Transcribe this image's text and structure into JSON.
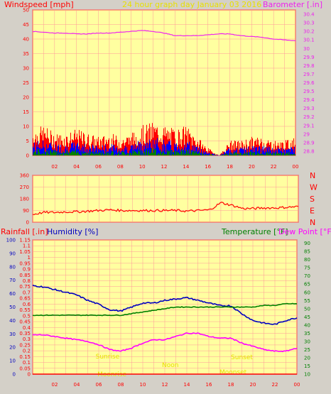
{
  "colors": {
    "background": "#d4d0c8",
    "plot_bg": "#ffffa0",
    "grid": "#ff9999",
    "axis_frame": "#ff0000",
    "windspeed": "#ff0000",
    "gust_blue": "#0000ff",
    "gust_green": "#008000",
    "barometer": "#ee22ee",
    "wind_dir": "#ff0000",
    "rainfall": "#ff0000",
    "humidity": "#0000c0",
    "temperature": "#008000",
    "dew_point": "#ff00ff",
    "faint_text": "#e8e000"
  },
  "chart_data": [
    {
      "type": "line",
      "title": "24 hour graph day   January 03 2016",
      "left_axis_label": "Windspeed [mph]",
      "right_axis_label": "Barometer [.in]",
      "x_ticks": [
        "02",
        "04",
        "06",
        "08",
        "10",
        "12",
        "14",
        "16",
        "18",
        "20",
        "22",
        "00"
      ],
      "y_left_ticks": [
        "0",
        "5",
        "10",
        "15",
        "20",
        "25",
        "30",
        "35",
        "40",
        "45",
        "50"
      ],
      "y_left_range": [
        0,
        50
      ],
      "y_right_ticks": [
        "28.8",
        "28.9",
        "29",
        "29.1",
        "29.2",
        "29.3",
        "29.4",
        "29.5",
        "29.6",
        "29.7",
        "29.8",
        "29.9",
        "30",
        "30.1",
        "30.2",
        "30.3",
        "30.4"
      ],
      "y_right_range": [
        28.75,
        30.45
      ],
      "grid": true,
      "series": [
        {
          "name": "Windspeed [mph]",
          "axis": "left",
          "x": [
            0,
            1,
            2,
            3,
            4,
            5,
            6,
            7,
            8,
            9,
            10,
            11,
            12,
            13,
            14,
            15,
            16,
            17,
            18,
            19,
            20,
            21,
            22,
            23,
            24
          ],
          "values": [
            7,
            8,
            6,
            6,
            7,
            6,
            5,
            6,
            5,
            6,
            8,
            9,
            8,
            7,
            8,
            5,
            2,
            0,
            4,
            4,
            5,
            5,
            4,
            4,
            5
          ]
        },
        {
          "name": "Barometer [.in]",
          "axis": "right",
          "x": [
            0,
            1,
            2,
            3,
            4,
            5,
            6,
            7,
            8,
            9,
            10,
            11,
            12,
            13,
            14,
            15,
            16,
            17,
            18,
            19,
            20,
            21,
            22,
            23,
            24
          ],
          "values": [
            30.2,
            30.19,
            30.18,
            30.18,
            30.17,
            30.17,
            30.18,
            30.18,
            30.19,
            30.2,
            30.21,
            30.2,
            30.18,
            30.15,
            30.15,
            30.15,
            30.16,
            30.17,
            30.17,
            30.15,
            30.14,
            30.13,
            30.11,
            30.1,
            30.09
          ]
        }
      ]
    },
    {
      "type": "line",
      "left_axis_ticks": [
        "360",
        "270",
        "180",
        "90",
        "0"
      ],
      "y_range": [
        0,
        360
      ],
      "direction_labels": [
        "N",
        "W",
        "S",
        "E",
        "N"
      ],
      "x_ticks": [
        "02",
        "04",
        "06",
        "08",
        "10",
        "12",
        "14",
        "16",
        "18",
        "20",
        "22",
        "00"
      ],
      "series": [
        {
          "name": "Wind Direction",
          "x": [
            0,
            1,
            2,
            3,
            4,
            5,
            6,
            7,
            8,
            9,
            10,
            11,
            12,
            13,
            14,
            15,
            16,
            17,
            18,
            19,
            20,
            21,
            22,
            23,
            24
          ],
          "values": [
            60,
            75,
            75,
            80,
            80,
            85,
            90,
            95,
            90,
            90,
            90,
            90,
            90,
            90,
            85,
            90,
            95,
            150,
            130,
            105,
            105,
            110,
            110,
            115,
            120
          ]
        }
      ]
    },
    {
      "type": "line",
      "left_axis_label_1": "Rainfall [.in]",
      "left_axis_label_2": "Humidity [%]",
      "right_axis_label_1": "Temperature [°F]",
      "right_axis_label_2": "Dew Point [°F]",
      "y_humidity_ticks": [
        "0",
        "10",
        "20",
        "30",
        "40",
        "50",
        "60",
        "70",
        "80",
        "90",
        "100"
      ],
      "y_humidity_range": [
        0,
        100
      ],
      "y_rain_ticks": [
        "0",
        "0.05",
        "0.1",
        "0.15",
        "0.2",
        "0.25",
        "0.3",
        "0.35",
        "0.4",
        "0.45",
        "0.5",
        "0.55",
        "0.6",
        "0.65",
        "0.7",
        "0.75",
        "0.8",
        "0.85",
        "0.9",
        "0.95",
        "1",
        "1.05",
        "1.1",
        "1.15"
      ],
      "y_rain_range": [
        0,
        1.15
      ],
      "y_temp_ticks": [
        "10",
        "15",
        "20",
        "25",
        "30",
        "35",
        "40",
        "45",
        "50",
        "55",
        "60",
        "65",
        "70",
        "75",
        "80",
        "85",
        "90"
      ],
      "y_temp_range": [
        10,
        92
      ],
      "x_ticks": [
        "02",
        "04",
        "06",
        "08",
        "10",
        "12",
        "14",
        "16",
        "18",
        "20",
        "22",
        "00"
      ],
      "faint_labels": [
        "Sunrise",
        "Noon",
        "Sunset",
        "Moonrise",
        "Moonset"
      ],
      "series": [
        {
          "name": "Humidity [%]",
          "axis": "humidity",
          "x": [
            0,
            1,
            2,
            3,
            4,
            5,
            6,
            7,
            8,
            9,
            10,
            11,
            12,
            13,
            14,
            15,
            16,
            17,
            18,
            19,
            20,
            21,
            22,
            23,
            24
          ],
          "values": [
            66,
            65,
            63,
            61,
            59,
            55,
            52,
            48,
            47,
            50,
            53,
            53,
            55,
            56,
            57,
            55,
            53,
            51,
            51,
            45,
            40,
            38,
            37,
            40,
            42
          ]
        },
        {
          "name": "Temperature [°F]",
          "axis": "temp",
          "x": [
            0,
            1,
            2,
            3,
            4,
            5,
            6,
            7,
            8,
            9,
            10,
            11,
            12,
            13,
            14,
            15,
            16,
            17,
            18,
            19,
            20,
            21,
            22,
            23,
            24
          ],
          "values": [
            46,
            46,
            46,
            46,
            46,
            46,
            46,
            46,
            46,
            47,
            48,
            49,
            50,
            51,
            51,
            51,
            51,
            51,
            51,
            51,
            51,
            52,
            52,
            53,
            53
          ]
        },
        {
          "name": "Dew Point [°F]",
          "axis": "temp",
          "x": [
            0,
            1,
            2,
            3,
            4,
            5,
            6,
            7,
            8,
            9,
            10,
            11,
            12,
            13,
            14,
            15,
            16,
            17,
            18,
            19,
            20,
            21,
            22,
            23,
            24
          ],
          "values": [
            34,
            34,
            33,
            32,
            31,
            30,
            28,
            25,
            24,
            26,
            29,
            31,
            31,
            33,
            35,
            35,
            33,
            32,
            32,
            29,
            27,
            25,
            24,
            24,
            26
          ]
        },
        {
          "name": "Rainfall [.in]",
          "axis": "rain",
          "x": [
            0,
            24
          ],
          "values": [
            0,
            0
          ]
        }
      ]
    }
  ]
}
